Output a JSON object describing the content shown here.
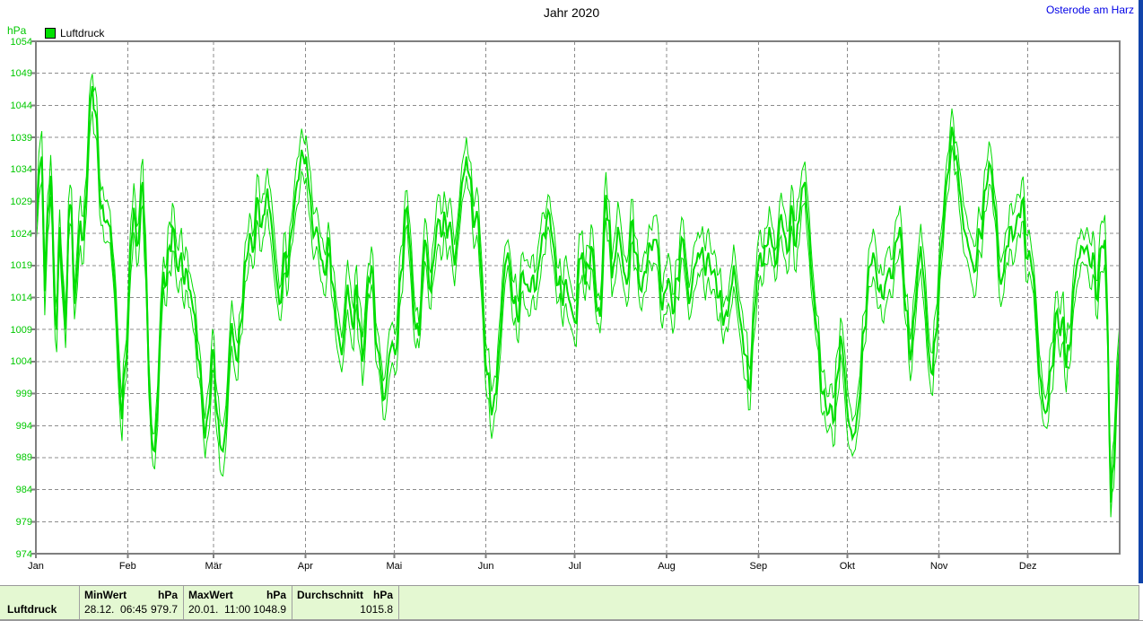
{
  "header": {
    "title": "Jahr 2020",
    "station": "Osterode am Harz"
  },
  "legend": {
    "series_label": "Luftdruck"
  },
  "axes": {
    "unit_label": "hPa",
    "y_min": 974,
    "y_max": 1054,
    "y_step": 5,
    "y_tick_labels": [
      "1054",
      "1049",
      "1044",
      "1039",
      "1034",
      "1029",
      "1024",
      "1019",
      "1014",
      "1009",
      "1004",
      "999",
      "994",
      "989",
      "984",
      "979",
      "974"
    ],
    "x_month_labels": [
      "Jan",
      "Feb",
      "Mär",
      "Apr",
      "Mai",
      "Jun",
      "Jul",
      "Aug",
      "Sep",
      "Okt",
      "Nov",
      "Dez"
    ],
    "month_lengths": [
      31,
      29,
      31,
      30,
      31,
      30,
      31,
      31,
      30,
      31,
      30,
      31
    ]
  },
  "colors": {
    "line_green": "#00dd00",
    "legend_green": "#00e000",
    "tick_text_green": "#00c800",
    "station_blue": "#0000e6",
    "grid_gray": "#8c8c8c",
    "axis_gray": "#7f7f7f",
    "table_bg": "#e4f8d2",
    "edge_bar_blue": "#1144aa"
  },
  "chart_data": {
    "type": "line",
    "title": "Jahr 2020",
    "ylabel": "hPa",
    "ylim": [
      974,
      1054
    ],
    "grid": true,
    "legend_position": "top-left",
    "x_description": "Tage des Jahres 2020 (Jan–Dez), tägliche Luftdruckwerte",
    "series": [
      {
        "name": "Luftdruck (hPa, Tagesmittel, abgelesen)",
        "values": [
          1025,
          1033,
          1036,
          1015,
          1027,
          1033,
          1018,
          1009,
          1025,
          1016,
          1009,
          1026,
          1028,
          1013,
          1019,
          1026,
          1023,
          1030,
          1042,
          1047,
          1043,
          1036,
          1028,
          1026,
          1026,
          1025,
          1019,
          1012,
          1002,
          995,
          1003,
          1010,
          1022,
          1028,
          1022,
          1026,
          1032,
          1020,
          1002,
          992,
          990,
          997,
          1010,
          1018,
          1016,
          1022,
          1025,
          1021,
          1018,
          1021,
          1016,
          1018,
          1015,
          1012,
          1008,
          1004,
          998,
          992,
          996,
          1002,
          1005,
          996,
          991,
          990,
          994,
          1003,
          1010,
          1006,
          1004,
          1010,
          1016,
          1020,
          1024,
          1021,
          1026,
          1029,
          1025,
          1027,
          1031,
          1027,
          1022,
          1017,
          1013,
          1016,
          1021,
          1018,
          1024,
          1028,
          1032,
          1035,
          1036,
          1036,
          1031,
          1026,
          1024,
          1024,
          1020,
          1018,
          1020,
          1022,
          1016,
          1011,
          1008,
          1005,
          1010,
          1016,
          1012,
          1009,
          1016,
          1010,
          1004,
          1010,
          1017,
          1019,
          1012,
          1006,
          1003,
          998,
          1000,
          1005,
          1007,
          1005,
          1010,
          1018,
          1024,
          1028,
          1022,
          1014,
          1009,
          1008,
          1016,
          1023,
          1019,
          1015,
          1020,
          1025,
          1026,
          1024,
          1026,
          1025,
          1024,
          1019,
          1024,
          1029,
          1033,
          1036,
          1033,
          1028,
          1026,
          1026,
          1018,
          1008,
          1002,
          998,
          997,
          999,
          1006,
          1013,
          1019,
          1021,
          1017,
          1013,
          1011,
          1014,
          1018,
          1016,
          1015,
          1017,
          1015,
          1018,
          1021,
          1024,
          1026,
          1027,
          1023,
          1019,
          1016,
          1014,
          1016,
          1015,
          1013,
          1011,
          1010,
          1020,
          1021,
          1016,
          1019,
          1022,
          1018,
          1012,
          1011,
          1020,
          1030,
          1026,
          1017,
          1020,
          1025,
          1022,
          1018,
          1016,
          1021,
          1026,
          1021,
          1017,
          1015,
          1018,
          1020,
          1022,
          1023,
          1023,
          1018,
          1012,
          1015,
          1017,
          1014,
          1012,
          1017,
          1021,
          1023,
          1018,
          1013,
          1016,
          1019,
          1021,
          1021,
          1019,
          1020,
          1019,
          1018,
          1017,
          1014,
          1012,
          1011,
          1011,
          1015,
          1019,
          1015,
          1011,
          1008,
          1005,
          1000,
          1004,
          1012,
          1018,
          1021,
          1019,
          1022,
          1025,
          1022,
          1019,
          1023,
          1027,
          1024,
          1021,
          1025,
          1027,
          1022,
          1026,
          1031,
          1032,
          1026,
          1019,
          1014,
          1009,
          1004,
          999,
          997,
          996,
          997,
          995,
          1002,
          1008,
          1004,
          998,
          994,
          992,
          993,
          997,
          1003,
          1009,
          1015,
          1019,
          1021,
          1018,
          1015,
          1014,
          1016,
          1018,
          1017,
          1020,
          1023,
          1025,
          1019,
          1012,
          1007,
          1006,
          1012,
          1018,
          1022,
          1017,
          1010,
          1004,
          1002,
          1008,
          1015,
          1022,
          1028,
          1033,
          1038,
          1039,
          1036,
          1031,
          1027,
          1024,
          1022,
          1020,
          1018,
          1021,
          1024,
          1027,
          1031,
          1035,
          1033,
          1028,
          1021,
          1016,
          1018,
          1022,
          1025,
          1023,
          1025,
          1027,
          1029,
          1025,
          1020,
          1020,
          1017,
          1010,
          1002,
          998,
          996,
          998,
          1003,
          1008,
          1012,
          1008,
          1011,
          1003,
          1006,
          1012,
          1017,
          1020,
          1022,
          1021,
          1022,
          1019,
          1021,
          1014,
          1018,
          1022,
          1023,
          1008,
          982,
          988,
          1000,
          1007
        ]
      }
    ],
    "annotations": {
      "min": {
        "date": "28.12.  06:45",
        "value": 979.7
      },
      "max": {
        "date": "20.01.  11:00",
        "value": 1048.9
      },
      "mean": 1015.8
    }
  },
  "stats_table": {
    "row_label": "Luftdruck",
    "columns": [
      {
        "header_left": "MinWert",
        "header_right": "hPa",
        "value_left": "28.12.  06:45",
        "value_right": "979.7"
      },
      {
        "header_left": "MaxWert",
        "header_right": "hPa",
        "value_left": "20.01.  11:00",
        "value_right": "1048.9"
      },
      {
        "header_left": "Durchschnitt",
        "header_right": "hPa",
        "value_left": "",
        "value_right": "1015.8"
      }
    ]
  }
}
